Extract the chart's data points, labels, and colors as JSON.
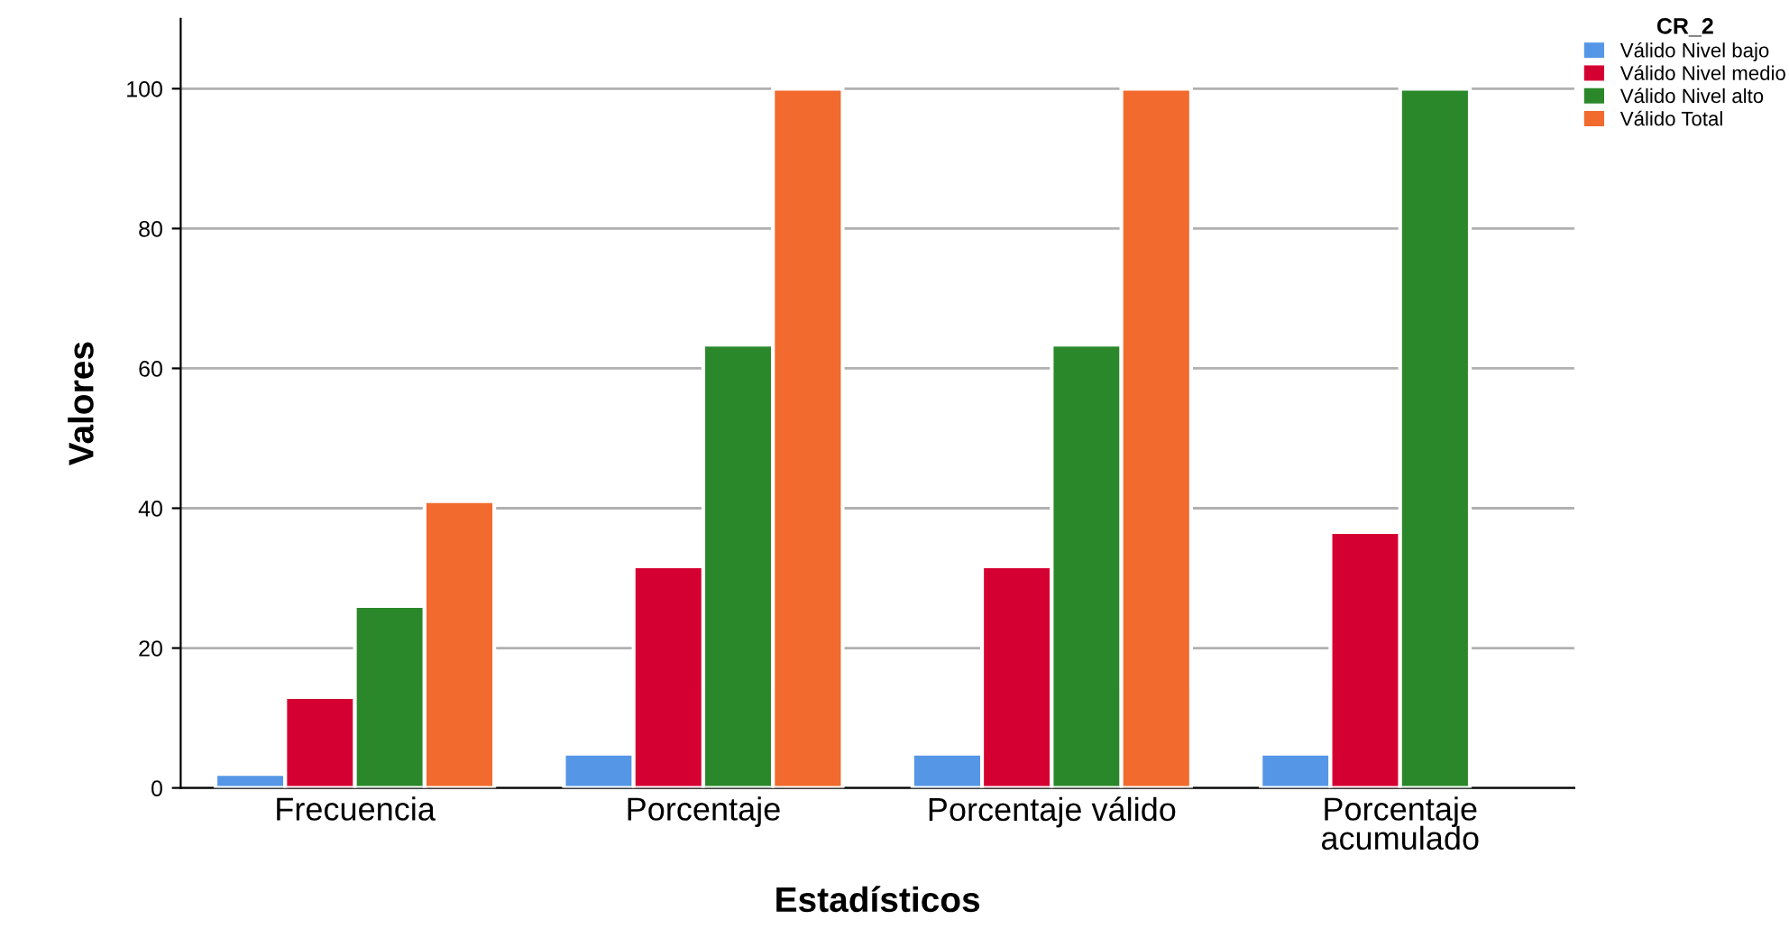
{
  "chart_data": {
    "type": "bar",
    "xlabel": "Estadísticos",
    "ylabel": "Valores",
    "legend_title": "CR_2",
    "categories": [
      "Frecuencia",
      "Porcentaje",
      "Porcentaje válido",
      "Porcentaje\nacumulado"
    ],
    "series": [
      {
        "name": "Válido Nivel bajo",
        "color": "#5596e6",
        "values": [
          2,
          4.9,
          4.9,
          4.9
        ]
      },
      {
        "name": "Válido Nivel medio",
        "color": "#d50032",
        "values": [
          13,
          31.7,
          31.7,
          36.6
        ]
      },
      {
        "name": "Válido Nivel alto",
        "color": "#2a882a",
        "values": [
          26,
          63.4,
          63.4,
          100
        ]
      },
      {
        "name": "Válido Total",
        "color": "#f26a2e",
        "values": [
          41,
          100,
          100,
          null
        ]
      }
    ],
    "ylim": [
      0,
      110
    ],
    "yticks": [
      0,
      20,
      40,
      60,
      80,
      100
    ],
    "grid": "y",
    "legend": "top right"
  }
}
